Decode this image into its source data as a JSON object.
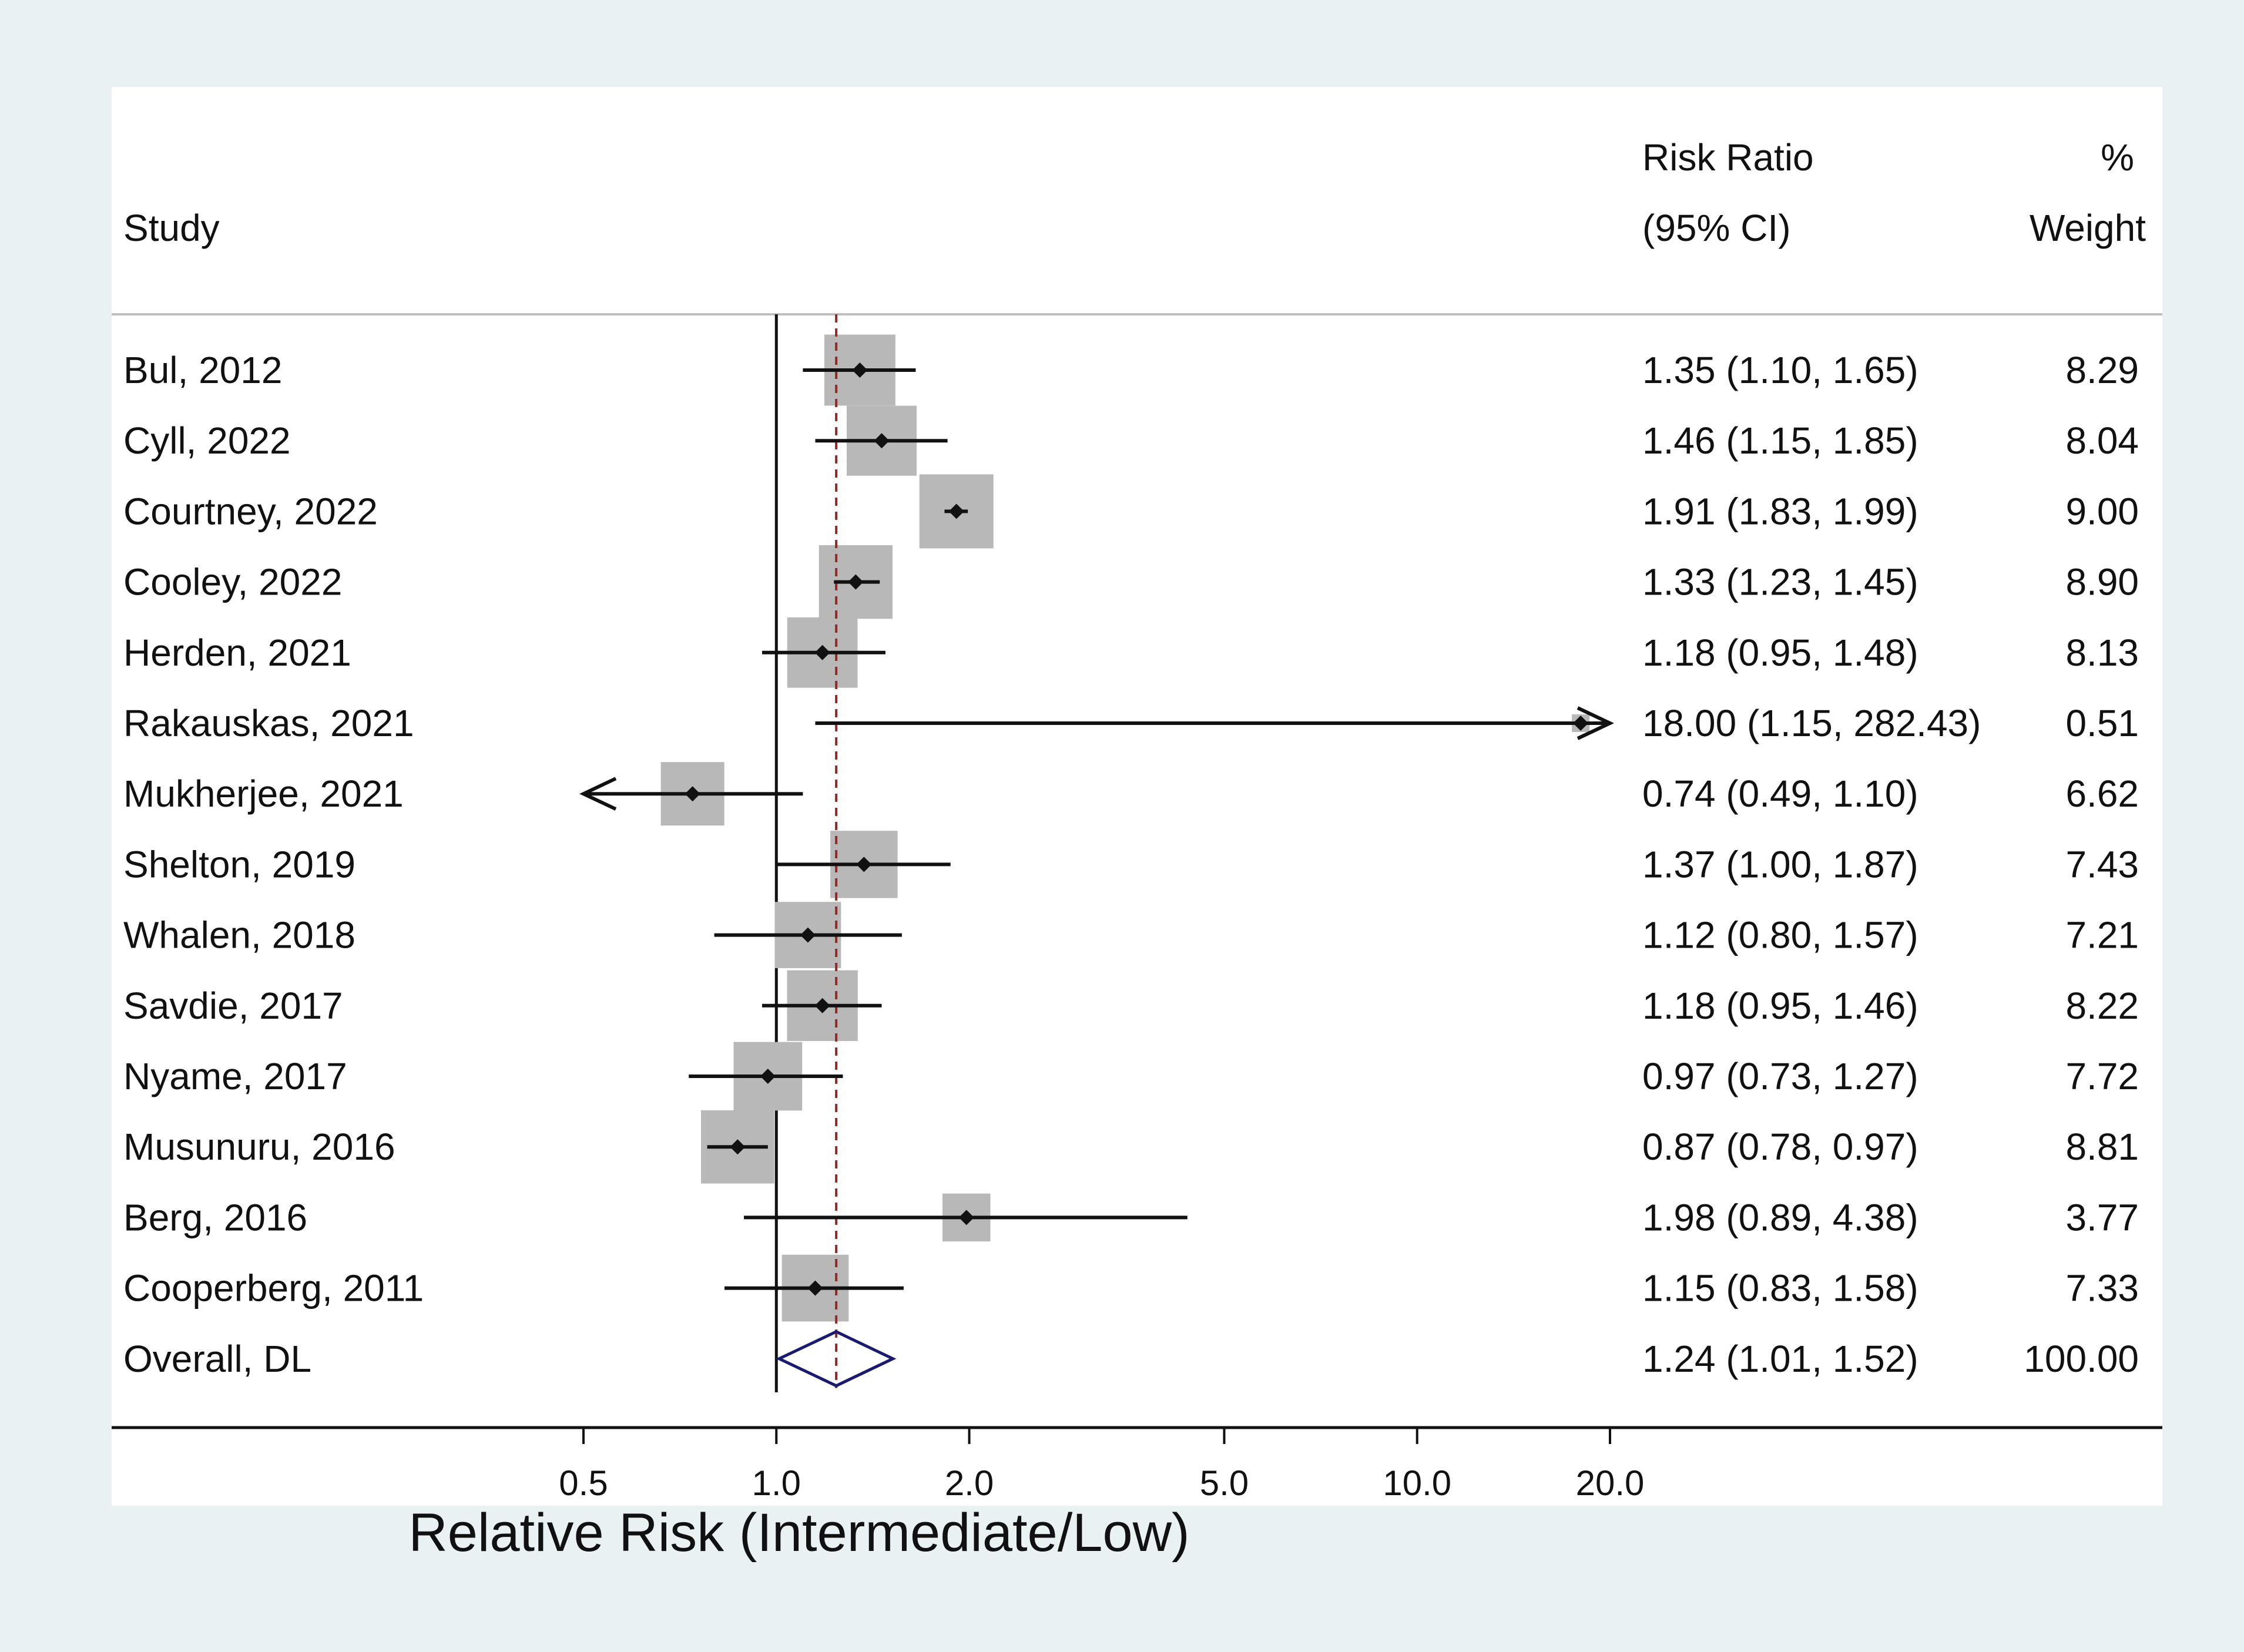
{
  "colors": {
    "outer_bg": "#e9f1f3",
    "panel_bg": "#ffffff",
    "box": "#b8b8b8",
    "point": "#111111",
    "ci_line": "#111111",
    "ref_line": "#111111",
    "overall_line": "#8a2b2b",
    "diamond": "#1a1a6e",
    "rule_top": "#bfbfbf",
    "rule_bottom": "#111111"
  },
  "chart_data": {
    "type": "forest",
    "x_scale": "log",
    "xlim": [
      0.5,
      20.0
    ],
    "null_value": 1.0,
    "overall_estimate": 1.24,
    "header": {
      "study": "Study",
      "rr_line1": "Risk Ratio",
      "rr_line2": "(95% CI)",
      "weight_line1": "%",
      "weight_line2": "Weight"
    },
    "xlabel": "Relative Risk (Intermediate/Low)",
    "ticks": [
      {
        "value": 0.5,
        "label": "0.5"
      },
      {
        "value": 1.0,
        "label": "1.0"
      },
      {
        "value": 2.0,
        "label": "2.0"
      },
      {
        "value": 5.0,
        "label": "5.0"
      },
      {
        "value": 10.0,
        "label": "10.0"
      },
      {
        "value": 20.0,
        "label": "20.0"
      }
    ],
    "studies": [
      {
        "study": "Bul, 2012",
        "rr": 1.35,
        "lower": 1.1,
        "upper": 1.65,
        "ci_text": "1.35 (1.10, 1.65)",
        "weight": 8.29,
        "weight_text": "8.29"
      },
      {
        "study": "Cyll, 2022",
        "rr": 1.46,
        "lower": 1.15,
        "upper": 1.85,
        "ci_text": "1.46 (1.15, 1.85)",
        "weight": 8.04,
        "weight_text": "8.04"
      },
      {
        "study": "Courtney, 2022",
        "rr": 1.91,
        "lower": 1.83,
        "upper": 1.99,
        "ci_text": "1.91 (1.83, 1.99)",
        "weight": 9.0,
        "weight_text": "9.00"
      },
      {
        "study": "Cooley, 2022",
        "rr": 1.33,
        "lower": 1.23,
        "upper": 1.45,
        "ci_text": "1.33 (1.23, 1.45)",
        "weight": 8.9,
        "weight_text": "8.90"
      },
      {
        "study": "Herden, 2021",
        "rr": 1.18,
        "lower": 0.95,
        "upper": 1.48,
        "ci_text": "1.18 (0.95, 1.48)",
        "weight": 8.13,
        "weight_text": "8.13"
      },
      {
        "study": "Rakauskas, 2021",
        "rr": 18.0,
        "lower": 1.15,
        "upper": 282.43,
        "ci_text": "18.00 (1.15, 282.43)",
        "weight": 0.51,
        "weight_text": "0.51"
      },
      {
        "study": "Mukherjee, 2021",
        "rr": 0.74,
        "lower": 0.49,
        "upper": 1.1,
        "ci_text": "0.74 (0.49, 1.10)",
        "weight": 6.62,
        "weight_text": "6.62"
      },
      {
        "study": "Shelton, 2019",
        "rr": 1.37,
        "lower": 1.0,
        "upper": 1.87,
        "ci_text": "1.37 (1.00, 1.87)",
        "weight": 7.43,
        "weight_text": "7.43"
      },
      {
        "study": "Whalen, 2018",
        "rr": 1.12,
        "lower": 0.8,
        "upper": 1.57,
        "ci_text": "1.12 (0.80, 1.57)",
        "weight": 7.21,
        "weight_text": "7.21"
      },
      {
        "study": "Savdie, 2017",
        "rr": 1.18,
        "lower": 0.95,
        "upper": 1.46,
        "ci_text": "1.18 (0.95, 1.46)",
        "weight": 8.22,
        "weight_text": "8.22"
      },
      {
        "study": "Nyame, 2017",
        "rr": 0.97,
        "lower": 0.73,
        "upper": 1.27,
        "ci_text": "0.97 (0.73, 1.27)",
        "weight": 7.72,
        "weight_text": "7.72"
      },
      {
        "study": "Musunuru, 2016",
        "rr": 0.87,
        "lower": 0.78,
        "upper": 0.97,
        "ci_text": "0.87 (0.78, 0.97)",
        "weight": 8.81,
        "weight_text": "8.81"
      },
      {
        "study": "Berg, 2016",
        "rr": 1.98,
        "lower": 0.89,
        "upper": 4.38,
        "ci_text": "1.98 (0.89, 4.38)",
        "weight": 3.77,
        "weight_text": "3.77"
      },
      {
        "study": "Cooperberg, 2011",
        "rr": 1.15,
        "lower": 0.83,
        "upper": 1.58,
        "ci_text": "1.15 (0.83, 1.58)",
        "weight": 7.33,
        "weight_text": "7.33"
      }
    ],
    "overall": {
      "study": "Overall, DL",
      "rr": 1.24,
      "lower": 1.01,
      "upper": 1.52,
      "ci_text": "1.24 (1.01, 1.52)",
      "weight": 100.0,
      "weight_text": "100.00"
    }
  }
}
